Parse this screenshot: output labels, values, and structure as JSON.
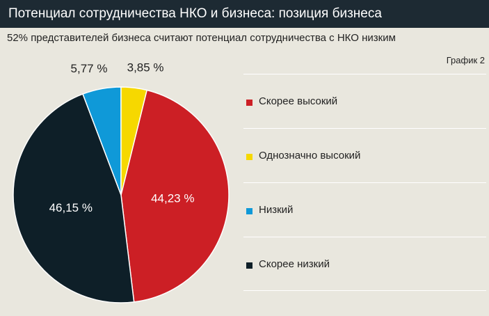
{
  "header": {
    "title": "Потенциал сотрудничества НКО и бизнеса: позиция бизнеса",
    "subtitle": "52% представителей бизнеса считают потенциал сотрудничества с НКО низким",
    "figure_label": "График 2"
  },
  "chart_data": {
    "type": "pie",
    "title": "Потенциал сотрудничества НКО и бизнеса: позиция бизнеса",
    "slices": [
      {
        "label": "Скорее высокий",
        "value": 44.23,
        "value_label": "44,23 %",
        "color": "#cc1f25"
      },
      {
        "label": "Скорее низкий",
        "value": 46.15,
        "value_label": "46,15 %",
        "color": "#0e1f28"
      },
      {
        "label": "Низкий",
        "value": 5.77,
        "value_label": "5,77 %",
        "color": "#0f99d8"
      },
      {
        "label": "Однозначно высокий",
        "value": 3.85,
        "value_label": "3,85 %",
        "color": "#f6d800"
      }
    ],
    "legend": [
      {
        "label": "Скорее высокий",
        "color": "#cc1f25"
      },
      {
        "label": "Однозначно высокий",
        "color": "#f6d800"
      },
      {
        "label": "Низкий",
        "color": "#0f99d8"
      },
      {
        "label": "Скорее низкий",
        "color": "#0e1f28"
      }
    ],
    "legend_position": "right"
  }
}
